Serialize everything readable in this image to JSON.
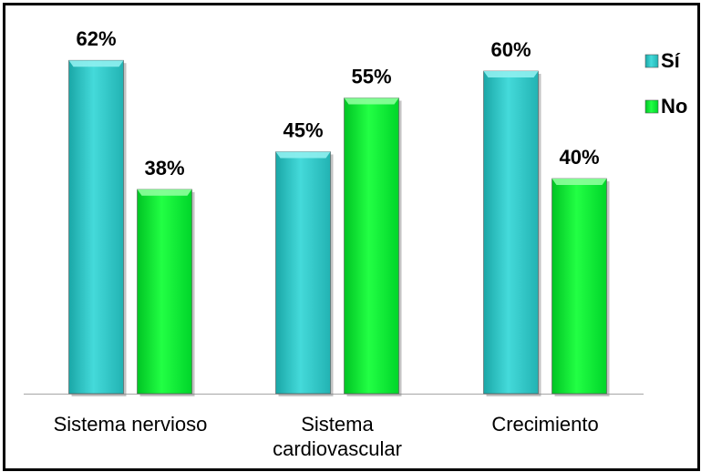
{
  "chart_data": {
    "type": "bar",
    "categories": [
      [
        "Sistema nervioso"
      ],
      [
        "Sistema",
        "cardiovascular"
      ],
      [
        "Crecimiento"
      ]
    ],
    "series": [
      {
        "name": "Sí",
        "values": [
          62,
          45,
          60
        ],
        "labels": [
          "62%",
          "45%",
          "60%"
        ],
        "color": "#33CCCC"
      },
      {
        "name": "No",
        "values": [
          38,
          55,
          40
        ],
        "labels": [
          "38%",
          "55%",
          "40%"
        ],
        "color": "#00EE33"
      }
    ],
    "ylim": [
      0,
      70
    ],
    "grid": false,
    "legend": "top-right"
  }
}
